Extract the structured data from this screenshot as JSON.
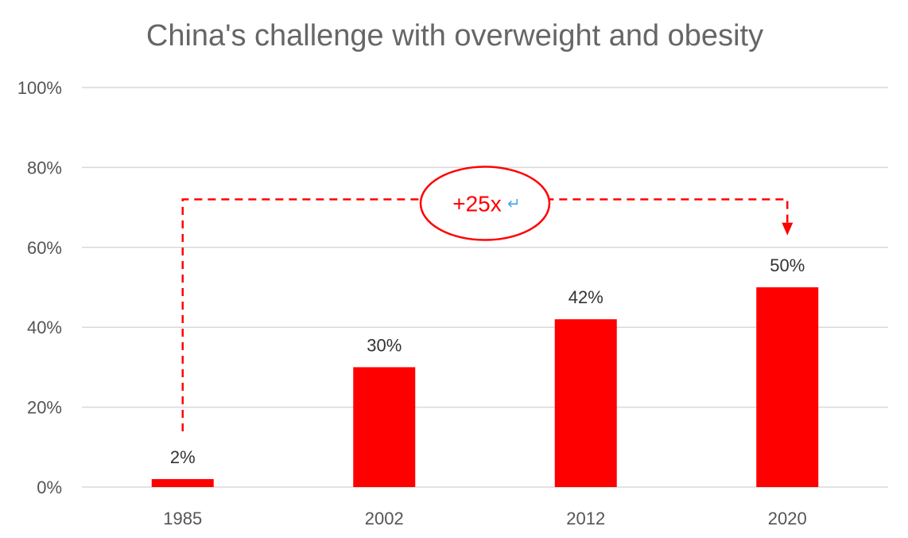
{
  "chart_data": {
    "type": "bar",
    "title": "China's challenge with overweight and obesity",
    "categories": [
      "1985",
      "2002",
      "2012",
      "2020"
    ],
    "series": [
      {
        "values": [
          2,
          30,
          42,
          50
        ]
      }
    ],
    "data_labels": [
      "2%",
      "30%",
      "42%",
      "50%"
    ],
    "ylim": [
      0,
      100
    ],
    "yticks": [
      0,
      20,
      40,
      60,
      80,
      100
    ],
    "ytick_labels": [
      "0%",
      "20%",
      "40%",
      "60%",
      "80%",
      "100%"
    ],
    "grid": true,
    "legend": "none",
    "annotation": {
      "text": "+25x",
      "mark": "↵",
      "from_category": "1985",
      "to_category": "2020"
    },
    "colors": {
      "bar": "#ff0000",
      "grid": "#d9d9d9",
      "callout": "#ff0000"
    }
  }
}
